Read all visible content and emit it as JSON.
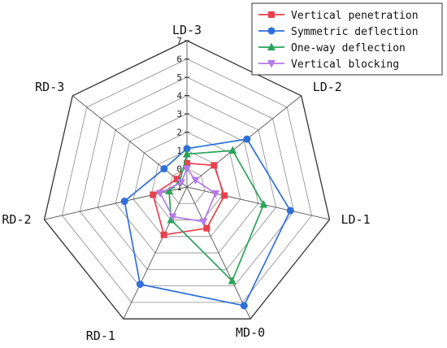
{
  "chart_data": {
    "type": "radar",
    "axes": [
      "LD-3",
      "LD-2",
      "LD-1",
      "MD-0",
      "RD-1",
      "RD-2",
      "RD-3"
    ],
    "radial_ticks": [
      "-1",
      "0",
      "1",
      "2",
      "3",
      "4",
      "5",
      "6",
      "7"
    ],
    "rlim": [
      -1,
      7
    ],
    "grid": true,
    "legend_position": "top-right",
    "series": [
      {
        "name": "Vertical penetration",
        "color": "#e8414f",
        "marker": "square",
        "values": [
          0.3,
          0.9,
          1.1,
          1.5,
          1.9,
          0.9,
          -0.3
        ]
      },
      {
        "name": "Symmetric deflection",
        "color": "#2f6fd8",
        "marker": "circle",
        "values": [
          1.1,
          3.2,
          4.8,
          6.2,
          4.9,
          2.5,
          0.6
        ]
      },
      {
        "name": "One-way deflection",
        "color": "#2aa35a",
        "marker": "triangle-up",
        "values": [
          0.8,
          2.2,
          3.3,
          4.7,
          1.0,
          0.0,
          -0.5
        ]
      },
      {
        "name": "Vertical blocking",
        "color": "#b57be8",
        "marker": "triangle-down",
        "values": [
          0.0,
          -0.4,
          0.6,
          1.1,
          0.8,
          0.5,
          -0.6
        ]
      }
    ]
  }
}
